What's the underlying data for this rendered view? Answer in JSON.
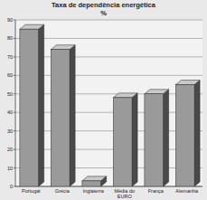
{
  "chart_data": {
    "type": "bar",
    "title": "Taxa de dependência energética",
    "subtitle": "%",
    "categories": [
      "Portugal",
      "Grécia",
      "Inglaterra",
      "Média do EURO",
      "França",
      "Alemanha"
    ],
    "values": [
      85,
      74,
      3,
      48,
      50,
      55
    ],
    "color": "#9a9a9a",
    "ylim": [
      0,
      90
    ],
    "yticks": [
      0,
      10,
      20,
      30,
      40,
      50,
      60,
      70,
      80,
      90
    ],
    "grid": true
  }
}
